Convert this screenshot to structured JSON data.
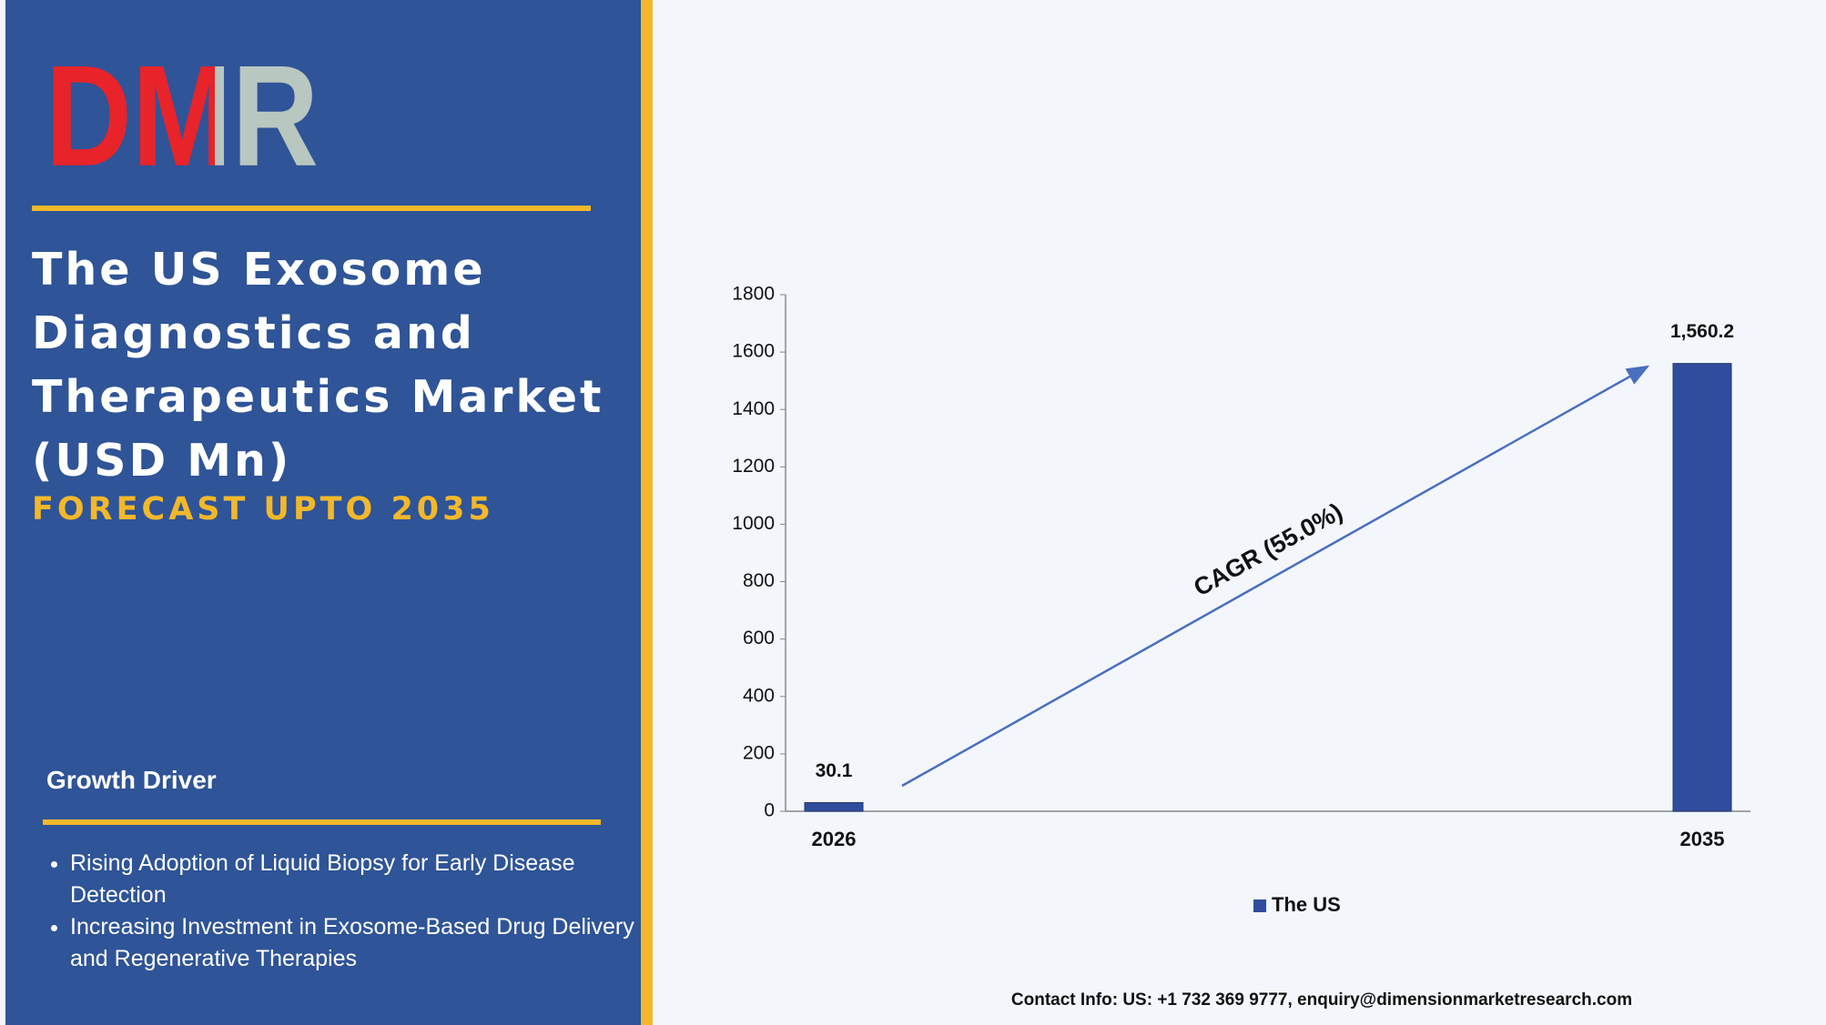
{
  "logo": "DMR",
  "title": "The US Exosome Diagnostics and Therapeutics Market (USD Mn)",
  "subtitle": "FORECAST UPTO 2035",
  "growth_driver": {
    "heading": "Growth Driver",
    "items": [
      "Rising Adoption of Liquid Biopsy for Early Disease Detection",
      "Increasing Investment in Exosome-Based Drug Delivery and Regenerative Therapies"
    ]
  },
  "contact": "Contact Info: US: +1 732 369 9777, enquiry@dimensionmarketresearch.com",
  "chart_data": {
    "type": "bar",
    "categories": [
      "2026",
      "2035"
    ],
    "series": [
      {
        "name": "The US",
        "color": "#2f4d9c",
        "values": [
          30.1,
          1560.2
        ],
        "value_labels": [
          "30.1",
          "1,560.2"
        ]
      }
    ],
    "ylim": [
      0,
      1800
    ],
    "yticks": [
      0,
      200,
      400,
      600,
      800,
      1000,
      1200,
      1400,
      1600,
      1800
    ],
    "annotation": "CAGR (55.0%)",
    "legend": "bottom"
  }
}
